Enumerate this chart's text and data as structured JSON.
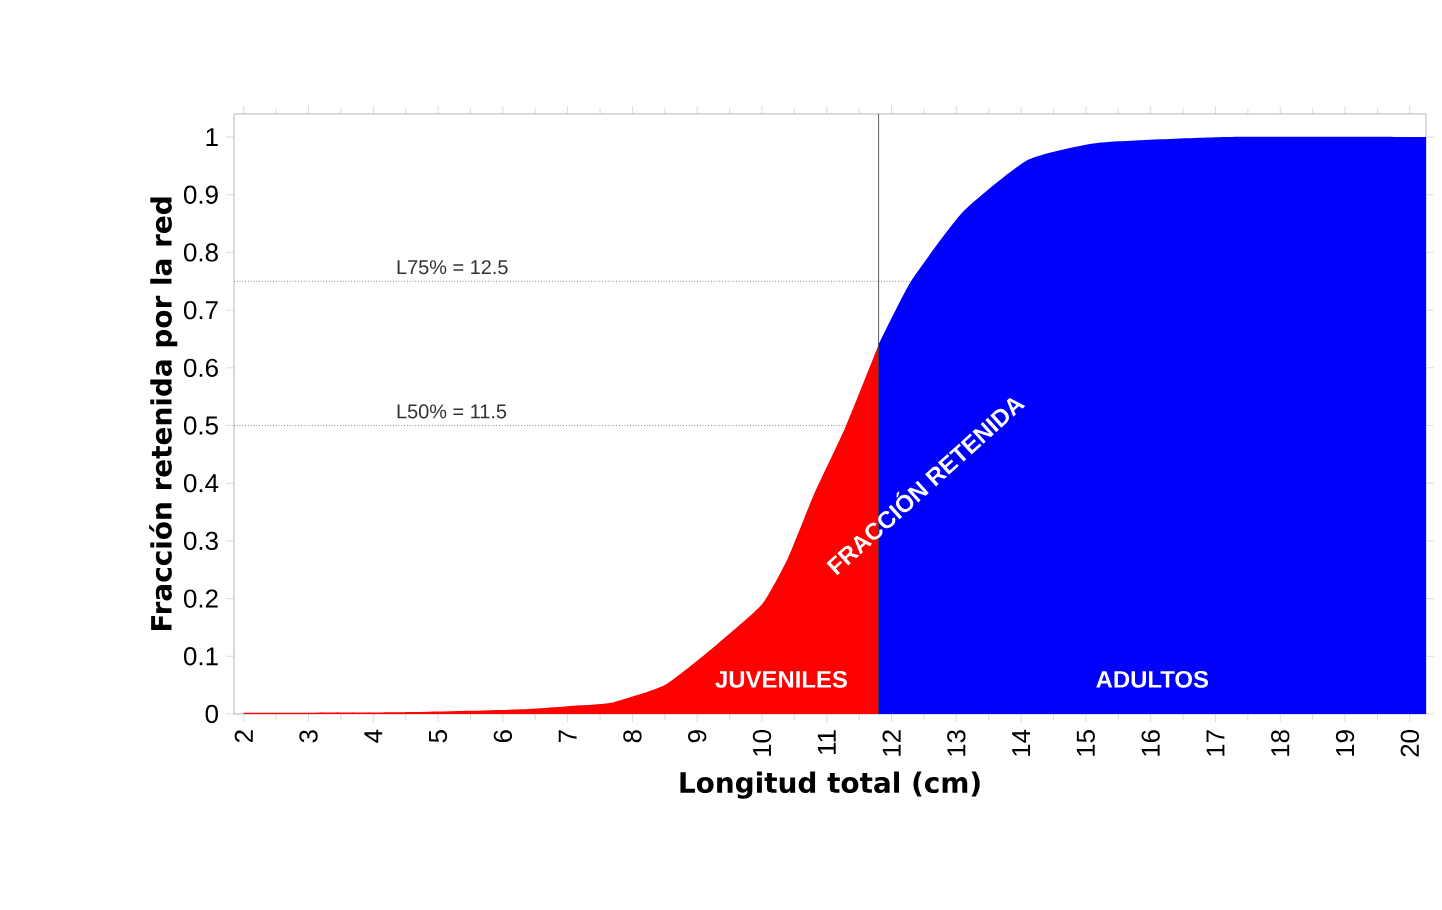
{
  "chart_data": {
    "type": "area",
    "xlabel": "Longitud total (cm)",
    "ylabel": "Fracción retenida por la red",
    "xlim": [
      1.85,
      20.25
    ],
    "xticks": [
      2,
      3,
      4,
      5,
      6,
      7,
      8,
      9,
      10,
      11,
      12,
      13,
      14,
      15,
      16,
      17,
      18,
      19,
      20
    ],
    "ylim": [
      0,
      1.04
    ],
    "yticks": [
      0,
      0.1,
      0.2,
      0.3,
      0.4,
      0.5,
      0.6,
      0.7,
      0.8,
      0.9,
      1
    ],
    "series": [
      {
        "color": "#ff0000",
        "x": [
          2,
          4.4,
          6.3,
          7.2,
          7.7,
          8.5,
          9.3,
          10,
          10.4,
          10.8,
          11.3,
          11.8
        ],
        "values": [
          0.002,
          0.003,
          0.008,
          0.015,
          0.02,
          0.05,
          0.12,
          0.19,
          0.27,
          0.38,
          0.5,
          0.64
        ]
      },
      {
        "color": "#0000ff",
        "x": [
          11.8,
          12.3,
          13.1,
          14.1,
          15.2,
          17.2,
          20.25
        ],
        "values": [
          0.64,
          0.75,
          0.87,
          0.96,
          0.99,
          1.0,
          1.0
        ]
      }
    ],
    "ref_lines": [
      {
        "axis": "y",
        "value": 0.75,
        "label": "L75% = 12.5",
        "line_style": "dotted"
      },
      {
        "axis": "y",
        "value": 0.5,
        "label": "L50% = 11.5",
        "line_style": "dotted"
      },
      {
        "axis": "x",
        "value": 11.8,
        "line_style": "solid"
      }
    ],
    "annotations": [
      "JUVENILES",
      "FRACCIÓN RETENIDA",
      "ADULTOS"
    ],
    "grid": false
  }
}
